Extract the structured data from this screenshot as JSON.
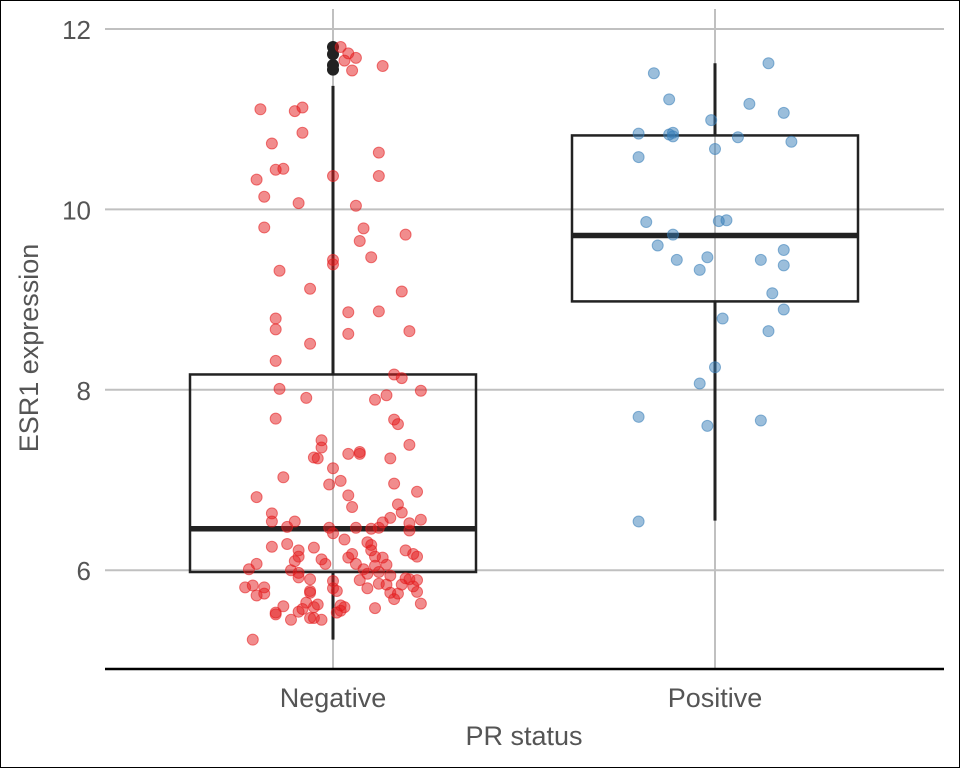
{
  "chart_data": {
    "type": "boxplot-jitter",
    "title": "",
    "xlabel": "PR status",
    "ylabel": "ESR1 expression",
    "ylim": [
      4.88,
      12.25
    ],
    "yticks": [
      6,
      8,
      10,
      12
    ],
    "grid": true,
    "legend": "none",
    "colors": {
      "Negative": "#e41a1c",
      "Positive": "#377eb8",
      "box": "#222222",
      "grid": "#c0c0c0"
    },
    "categories": [
      "Negative",
      "Positive"
    ],
    "series": [
      {
        "category": "Negative",
        "box": {
          "whisker_low": 5.23,
          "q1": 5.98,
          "median": 6.46,
          "q3": 8.17,
          "whisker_high": 11.37
        },
        "outliers": [
          11.8,
          11.72,
          11.6,
          11.55
        ],
        "points": [
          [
            -0.19,
            11.11
          ],
          [
            -0.2,
            10.33
          ],
          [
            -0.18,
            10.14
          ],
          [
            -0.16,
            10.73
          ],
          [
            -0.15,
            10.44
          ],
          [
            -0.13,
            10.45
          ],
          [
            -0.18,
            9.8
          ],
          [
            -0.14,
            9.32
          ],
          [
            -0.15,
            8.79
          ],
          [
            -0.15,
            8.67
          ],
          [
            -0.15,
            8.32
          ],
          [
            -0.1,
            11.09
          ],
          [
            -0.08,
            11.13
          ],
          [
            -0.08,
            10.85
          ],
          [
            -0.09,
            10.07
          ],
          [
            -0.06,
            9.12
          ],
          [
            -0.06,
            8.51
          ],
          [
            0.0,
            10.37
          ],
          [
            0.04,
            11.73
          ],
          [
            0.05,
            11.54
          ],
          [
            0.06,
            11.68
          ],
          [
            0.03,
            11.65
          ],
          [
            0.02,
            11.8
          ],
          [
            0.13,
            11.59
          ],
          [
            0.12,
            10.63
          ],
          [
            0.12,
            10.37
          ],
          [
            0.06,
            10.04
          ],
          [
            0.08,
            9.79
          ],
          [
            0.07,
            9.65
          ],
          [
            0.1,
            9.47
          ],
          [
            0.0,
            9.44
          ],
          [
            0.0,
            9.39
          ],
          [
            0.04,
            8.86
          ],
          [
            0.04,
            8.62
          ],
          [
            0.19,
            9.72
          ],
          [
            0.18,
            9.09
          ],
          [
            0.12,
            8.87
          ],
          [
            0.2,
            8.65
          ],
          [
            0.16,
            8.17
          ],
          [
            0.18,
            8.13
          ],
          [
            -0.14,
            8.01
          ],
          [
            -0.15,
            7.68
          ],
          [
            -0.07,
            7.91
          ],
          [
            -0.05,
            7.25
          ],
          [
            -0.03,
            7.44
          ],
          [
            -0.03,
            7.36
          ],
          [
            -0.04,
            7.24
          ],
          [
            -0.13,
            7.03
          ],
          [
            -0.2,
            6.81
          ],
          [
            -0.16,
            6.63
          ],
          [
            -0.16,
            6.54
          ],
          [
            -0.12,
            6.48
          ],
          [
            -0.1,
            6.54
          ],
          [
            -0.12,
            6.29
          ],
          [
            -0.16,
            6.26
          ],
          [
            -0.09,
            6.22
          ],
          [
            -0.09,
            6.15
          ],
          [
            -0.1,
            6.1
          ],
          [
            -0.2,
            6.07
          ],
          [
            -0.22,
            6.01
          ],
          [
            -0.23,
            5.81
          ],
          [
            -0.21,
            5.83
          ],
          [
            -0.18,
            5.81
          ],
          [
            -0.2,
            5.72
          ],
          [
            -0.18,
            5.74
          ],
          [
            -0.15,
            5.51
          ],
          [
            -0.21,
            5.23
          ],
          [
            -0.09,
            5.97
          ],
          [
            -0.09,
            5.92
          ],
          [
            -0.11,
            6.0
          ],
          [
            -0.06,
            5.77
          ],
          [
            -0.06,
            5.75
          ],
          [
            -0.04,
            5.62
          ],
          [
            -0.05,
            5.59
          ],
          [
            -0.06,
            5.47
          ],
          [
            -0.05,
            5.47
          ],
          [
            -0.03,
            5.45
          ],
          [
            -0.06,
            5.9
          ],
          [
            -0.05,
            6.25
          ],
          [
            -0.02,
            6.07
          ],
          [
            -0.01,
            6.47
          ],
          [
            -0.01,
            6.95
          ],
          [
            0.0,
            7.13
          ],
          [
            0.02,
            6.99
          ],
          [
            0.04,
            7.29
          ],
          [
            0.07,
            7.31
          ],
          [
            0.07,
            7.29
          ],
          [
            0.04,
            6.83
          ],
          [
            0.05,
            6.7
          ],
          [
            0.06,
            6.47
          ],
          [
            0.09,
            6.31
          ],
          [
            0.1,
            6.46
          ],
          [
            0.1,
            6.28
          ],
          [
            0.1,
            6.22
          ],
          [
            0.11,
            6.15
          ],
          [
            0.11,
            6.05
          ],
          [
            0.12,
            5.98
          ],
          [
            0.12,
            5.85
          ],
          [
            0.09,
            5.8
          ],
          [
            0.07,
            5.89
          ],
          [
            0.06,
            6.07
          ],
          [
            0.03,
            5.59
          ],
          [
            0.02,
            5.55
          ],
          [
            0.01,
            5.53
          ],
          [
            0.11,
            7.89
          ],
          [
            0.14,
            7.94
          ],
          [
            0.16,
            7.67
          ],
          [
            0.17,
            7.62
          ],
          [
            0.15,
            7.24
          ],
          [
            0.16,
            6.96
          ],
          [
            0.15,
            6.58
          ],
          [
            0.13,
            6.53
          ],
          [
            0.12,
            6.47
          ],
          [
            0.13,
            6.14
          ],
          [
            0.14,
            6.06
          ],
          [
            0.15,
            5.94
          ],
          [
            0.14,
            5.84
          ],
          [
            0.15,
            5.75
          ],
          [
            0.17,
            6.73
          ],
          [
            0.18,
            6.64
          ],
          [
            0.2,
            6.52
          ],
          [
            0.2,
            6.44
          ],
          [
            0.19,
            6.22
          ],
          [
            0.21,
            6.18
          ],
          [
            0.22,
            6.87
          ],
          [
            0.23,
            6.56
          ],
          [
            0.22,
            6.15
          ],
          [
            0.23,
            7.99
          ],
          [
            0.2,
            7.39
          ],
          [
            0.2,
            5.9
          ],
          [
            0.21,
            5.82
          ],
          [
            0.22,
            5.89
          ],
          [
            0.22,
            5.76
          ],
          [
            0.23,
            5.63
          ],
          [
            0.19,
            5.91
          ],
          [
            0.18,
            5.84
          ],
          [
            0.17,
            5.74
          ],
          [
            0.16,
            5.68
          ],
          [
            0.11,
            5.58
          ],
          [
            0.09,
            5.96
          ],
          [
            0.08,
            6.01
          ],
          [
            0.04,
            6.14
          ],
          [
            0.03,
            6.34
          ],
          [
            0.05,
            6.18
          ],
          [
            0.01,
            5.77
          ],
          [
            0.0,
            5.8
          ],
          [
            0.0,
            6.41
          ],
          [
            -0.03,
            6.12
          ],
          [
            -0.09,
            5.54
          ],
          [
            -0.11,
            5.45
          ],
          [
            -0.13,
            5.6
          ],
          [
            -0.15,
            5.53
          ],
          [
            -0.08,
            5.57
          ],
          [
            -0.07,
            5.64
          ],
          [
            0.02,
            5.61
          ],
          [
            0.0,
            5.88
          ]
        ]
      },
      {
        "category": "Positive",
        "box": {
          "whisker_low": 6.55,
          "q1": 8.98,
          "median": 9.71,
          "q3": 10.82,
          "whisker_high": 11.62
        },
        "outliers": [],
        "points": [
          [
            -0.16,
            11.51
          ],
          [
            -0.12,
            11.22
          ],
          [
            -0.2,
            10.58
          ],
          [
            -0.2,
            10.84
          ],
          [
            -0.12,
            10.83
          ],
          [
            -0.11,
            10.85
          ],
          [
            -0.11,
            10.81
          ],
          [
            -0.18,
            9.86
          ],
          [
            -0.15,
            9.6
          ],
          [
            -0.11,
            9.72
          ],
          [
            -0.1,
            9.44
          ],
          [
            -0.04,
            9.33
          ],
          [
            -0.02,
            9.47
          ],
          [
            -0.01,
            10.99
          ],
          [
            0.0,
            10.67
          ],
          [
            0.01,
            9.87
          ],
          [
            0.03,
            9.88
          ],
          [
            0.06,
            10.8
          ],
          [
            0.09,
            11.17
          ],
          [
            0.14,
            11.62
          ],
          [
            0.18,
            11.07
          ],
          [
            0.2,
            10.75
          ],
          [
            0.18,
            9.55
          ],
          [
            0.18,
            9.38
          ],
          [
            0.12,
            9.44
          ],
          [
            0.15,
            9.07
          ],
          [
            0.18,
            8.89
          ],
          [
            0.14,
            8.65
          ],
          [
            0.02,
            8.79
          ],
          [
            0.0,
            8.25
          ],
          [
            -0.04,
            8.07
          ],
          [
            -0.2,
            7.7
          ],
          [
            -0.02,
            7.6
          ],
          [
            0.12,
            7.66
          ],
          [
            -0.2,
            6.54
          ]
        ]
      }
    ]
  }
}
